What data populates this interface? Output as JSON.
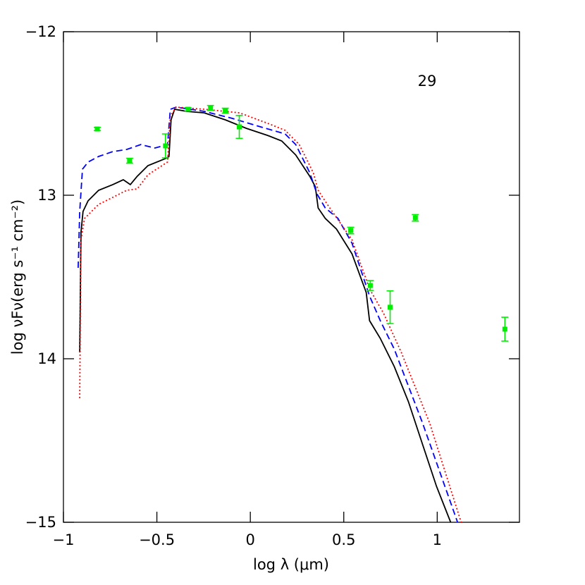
{
  "chart_data": {
    "type": "line",
    "annotation": "29",
    "xlabel": "log λ (μm)",
    "ylabel": "log νFν(erg s⁻¹ cm⁻²)",
    "xlim": [
      -1,
      1.44
    ],
    "ylim": [
      -15,
      -12
    ],
    "xticks": [
      {
        "value": -1,
        "label": "−1"
      },
      {
        "value": -0.5,
        "label": "−0.5"
      },
      0,
      0.5,
      1
    ],
    "yticks": [
      {
        "value": -12,
        "label": "−12"
      },
      {
        "value": -13,
        "label": "13"
      },
      {
        "value": -14,
        "label": "14"
      },
      {
        "value": -15,
        "label": "−15"
      }
    ],
    "series": [
      {
        "type": "line",
        "color": "#000000",
        "dash": "solid",
        "x": [
          -0.913,
          -0.906,
          -0.895,
          -0.868,
          -0.812,
          -0.736,
          -0.68,
          -0.642,
          -0.605,
          -0.548,
          -0.454,
          -0.435,
          -0.424,
          -0.405,
          -0.341,
          -0.247,
          -0.134,
          -0.021,
          0.092,
          0.168,
          0.243,
          0.318,
          0.348,
          0.363,
          0.401,
          0.461,
          0.544,
          0.62,
          0.638,
          0.695,
          0.77,
          0.846,
          0.921,
          0.996,
          1.072
        ],
        "y": [
          -13.961,
          -13.228,
          -13.099,
          -13.034,
          -12.97,
          -12.935,
          -12.905,
          -12.935,
          -12.884,
          -12.819,
          -12.776,
          -12.763,
          -12.539,
          -12.474,
          -12.487,
          -12.496,
          -12.539,
          -12.591,
          -12.634,
          -12.668,
          -12.754,
          -12.884,
          -12.948,
          -13.078,
          -13.142,
          -13.207,
          -13.358,
          -13.595,
          -13.767,
          -13.875,
          -14.047,
          -14.263,
          -14.522,
          -14.78,
          -15.0
        ]
      },
      {
        "type": "line",
        "color": "#0000ff",
        "dash": "dashed",
        "x": [
          -0.921,
          -0.913,
          -0.898,
          -0.868,
          -0.812,
          -0.736,
          -0.661,
          -0.586,
          -0.51,
          -0.443,
          -0.428,
          -0.397,
          -0.247,
          -0.096,
          0.055,
          0.186,
          0.243,
          0.318,
          0.356,
          0.401,
          0.469,
          0.544,
          0.638,
          0.695,
          0.77,
          0.921,
          1.109
        ],
        "y": [
          -13.444,
          -13.099,
          -12.841,
          -12.797,
          -12.763,
          -12.733,
          -12.72,
          -12.69,
          -12.711,
          -12.69,
          -12.474,
          -12.461,
          -12.487,
          -12.53,
          -12.582,
          -12.625,
          -12.69,
          -12.862,
          -12.991,
          -13.078,
          -13.142,
          -13.293,
          -13.616,
          -13.767,
          -13.94,
          -14.392,
          -15.0
        ]
      },
      {
        "type": "line",
        "color": "#ff0000",
        "dash": "dotted",
        "x": [
          -0.913,
          -0.906,
          -0.887,
          -0.812,
          -0.736,
          -0.661,
          -0.605,
          -0.548,
          -0.443,
          -0.428,
          -0.397,
          -0.247,
          -0.058,
          0.092,
          0.186,
          0.262,
          0.337,
          0.363,
          0.412,
          0.544,
          0.638,
          0.714,
          0.808,
          0.959,
          1.128
        ],
        "y": [
          -14.241,
          -13.272,
          -13.142,
          -13.056,
          -13.013,
          -12.97,
          -12.961,
          -12.875,
          -12.797,
          -12.517,
          -12.461,
          -12.474,
          -12.496,
          -12.56,
          -12.603,
          -12.69,
          -12.862,
          -12.97,
          -13.056,
          -13.272,
          -13.573,
          -13.724,
          -13.961,
          -14.392,
          -15.0
        ]
      },
      {
        "type": "scatter",
        "color": "#00ee00",
        "x": [
          -0.819,
          -0.646,
          -0.454,
          -0.333,
          -0.213,
          -0.134,
          -0.059,
          0.537,
          0.642,
          0.748,
          0.883,
          1.362
        ],
        "y": [
          -12.595,
          -12.789,
          -12.698,
          -12.474,
          -12.466,
          -12.483,
          -12.582,
          -13.216,
          -13.552,
          -13.685,
          -13.138,
          -13.819
        ],
        "err": [
          0.01,
          0.015,
          0.073,
          0.01,
          0.015,
          0.015,
          0.07,
          0.02,
          0.03,
          0.1,
          0.02,
          0.073
        ]
      }
    ]
  }
}
